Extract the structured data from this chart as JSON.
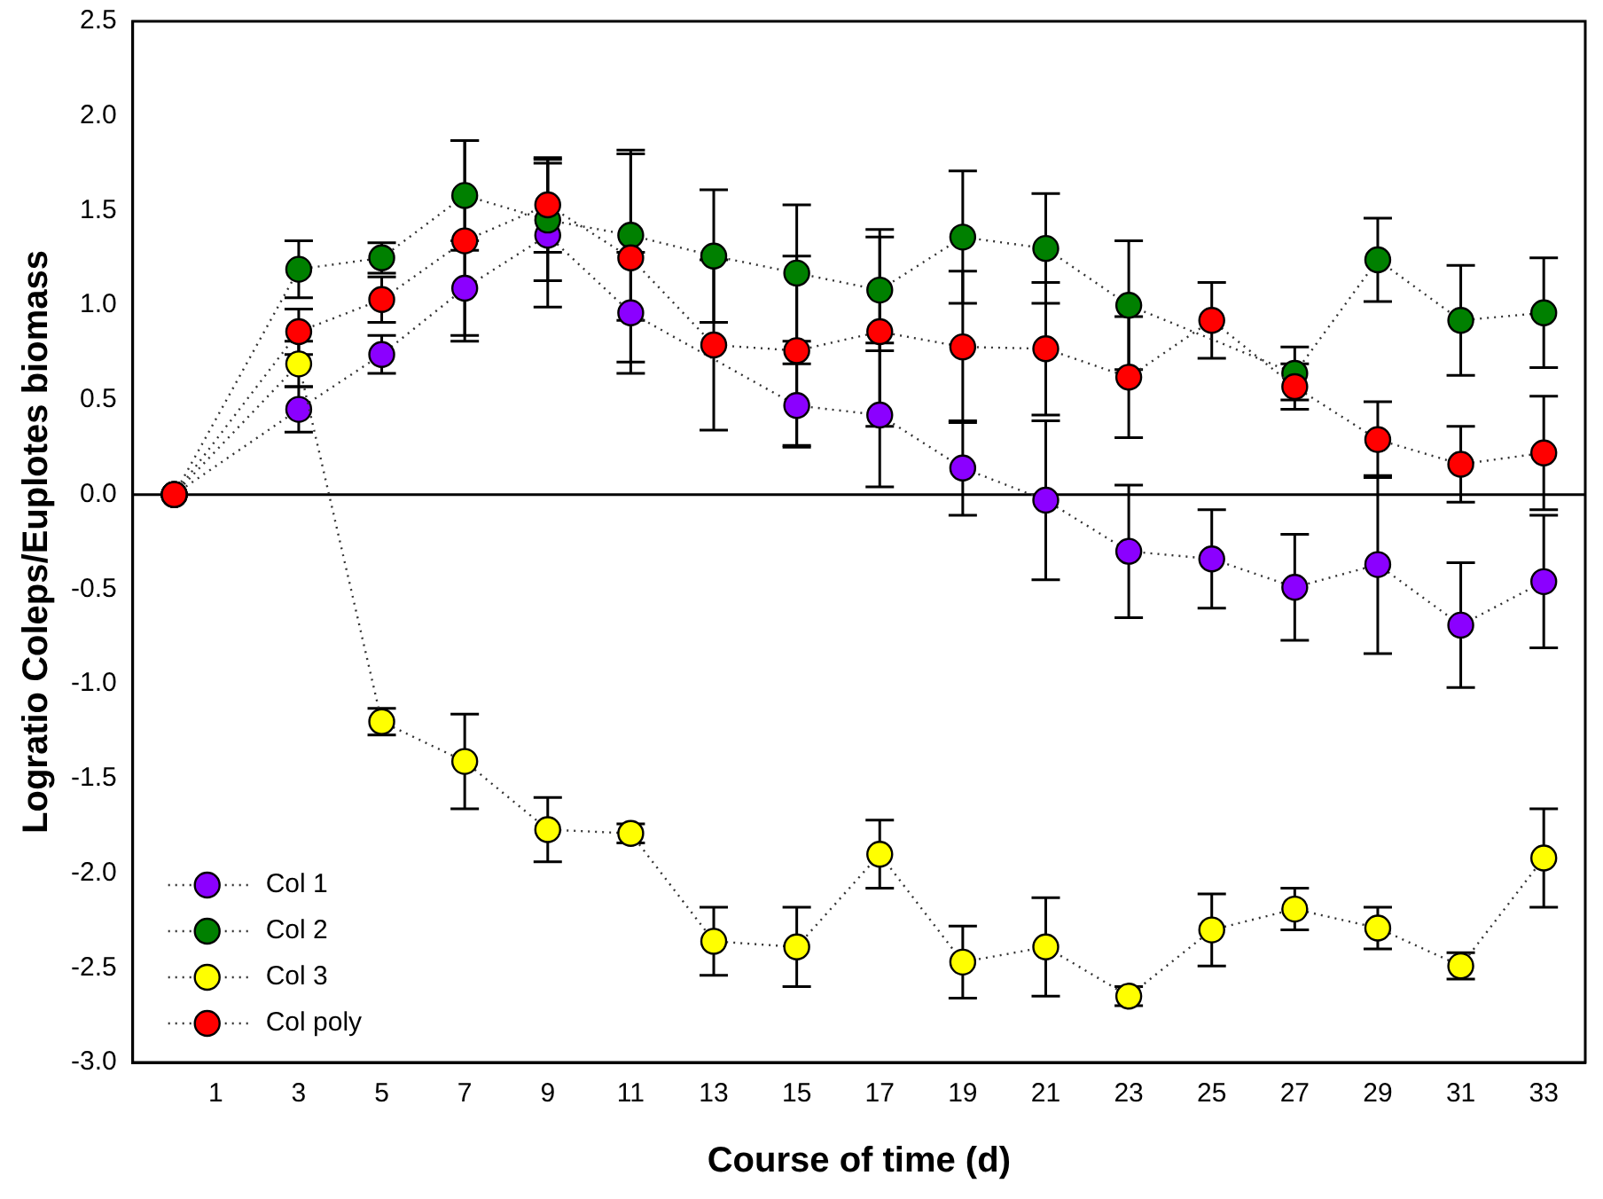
{
  "chart_data": {
    "type": "line",
    "xlabel": "Course of time (d)",
    "ylabel": "Logratio Coleps/Euplotes biomass",
    "x": [
      0,
      3,
      5,
      7,
      9,
      11,
      13,
      15,
      17,
      19,
      21,
      23,
      25,
      27,
      29,
      31,
      33
    ],
    "xlim": [
      -1,
      34
    ],
    "xticks": [
      1,
      3,
      5,
      7,
      9,
      11,
      13,
      15,
      17,
      19,
      21,
      23,
      25,
      27,
      29,
      31,
      33
    ],
    "ylim": [
      -3,
      2.5
    ],
    "yticks": [
      {
        "value": -3,
        "label": "-3.0"
      },
      {
        "value": -2.5,
        "label": "-2.5"
      },
      {
        "value": -2,
        "label": "-2.0"
      },
      {
        "value": -1.5,
        "label": "-1.5"
      },
      {
        "value": -1,
        "label": "-1.0"
      },
      {
        "value": -0.5,
        "label": "-0.5"
      },
      {
        "value": 0,
        "label": "0.0"
      },
      {
        "value": 0.5,
        "label": "0.5"
      },
      {
        "value": 1,
        "label": "1.0"
      },
      {
        "value": 1.5,
        "label": "1.5"
      },
      {
        "value": 2,
        "label": "2.0"
      },
      {
        "value": 2.5,
        "label": "2.5"
      }
    ],
    "grid": false,
    "legend": "bottom left",
    "marker": "circle",
    "line_style": "dotted",
    "ref_lines": [
      {
        "axis": "y",
        "value": 0,
        "color": "#000000",
        "line_style": "solid"
      }
    ],
    "series": [
      {
        "name": "Col 1",
        "color": "#8b00ff",
        "values": [
          0,
          0.45,
          0.74,
          1.09,
          1.37,
          0.96,
          null,
          0.47,
          0.42,
          0.14,
          -0.03,
          -0.3,
          -0.34,
          -0.49,
          -0.37,
          -0.69,
          -0.46
        ],
        "errors": [
          null,
          0.12,
          0.1,
          0.25,
          0.38,
          0.32,
          null,
          0.22,
          0.38,
          0.25,
          0.42,
          0.35,
          0.26,
          0.28,
          0.47,
          0.33,
          0.35
        ]
      },
      {
        "name": "Col 2",
        "color": "#008000",
        "values": [
          0,
          1.19,
          1.25,
          1.58,
          1.45,
          1.37,
          1.26,
          1.17,
          1.08,
          1.36,
          1.3,
          1.0,
          null,
          0.64,
          1.24,
          0.92,
          0.96
        ],
        "errors": [
          null,
          0.15,
          0.08,
          0.29,
          0.32,
          0.45,
          0.35,
          0.36,
          0.32,
          0.35,
          0.29,
          0.34,
          null,
          0.14,
          0.22,
          0.29,
          0.29
        ]
      },
      {
        "name": "Col 3",
        "color": "#ffff00",
        "values": [
          0,
          0.69,
          -1.2,
          -1.41,
          -1.77,
          -1.79,
          -2.36,
          -2.39,
          -1.9,
          -2.47,
          -2.39,
          -2.65,
          -2.3,
          -2.19,
          -2.29,
          -2.49,
          -1.92
        ],
        "errors": [
          null,
          0.12,
          0.07,
          0.25,
          0.17,
          0.05,
          0.18,
          0.21,
          0.18,
          0.19,
          0.26,
          0.05,
          0.19,
          0.11,
          0.11,
          0.07,
          0.26
        ]
      },
      {
        "name": "Col poly",
        "color": "#ff0000",
        "values": [
          0,
          0.86,
          1.03,
          1.34,
          1.53,
          1.25,
          0.79,
          0.76,
          0.86,
          0.78,
          0.77,
          0.62,
          0.92,
          0.57,
          0.29,
          0.16,
          0.22
        ],
        "errors": [
          null,
          0.12,
          0.12,
          0.53,
          0.25,
          0.55,
          0.45,
          0.5,
          0.5,
          0.4,
          0.35,
          0.32,
          0.2,
          0.12,
          0.2,
          0.2,
          0.3
        ]
      }
    ]
  }
}
